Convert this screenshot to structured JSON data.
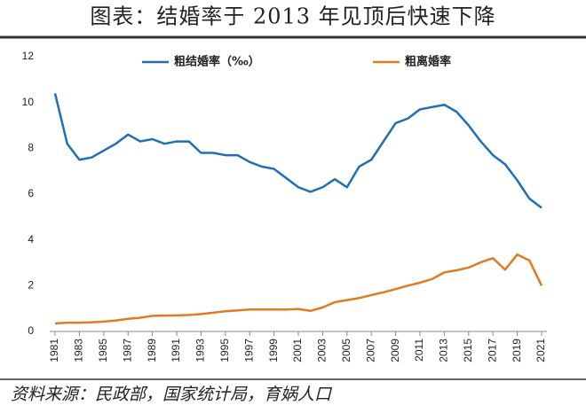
{
  "chart_data": {
    "type": "line",
    "title": "图表：结婚率于 2013 年见顶后快速下降",
    "source": "资料来源：民政部，国家统计局，育娲人口",
    "x": [
      1981,
      1982,
      1983,
      1984,
      1985,
      1986,
      1987,
      1988,
      1989,
      1990,
      1991,
      1992,
      1993,
      1994,
      1995,
      1996,
      1997,
      1998,
      1999,
      2000,
      2001,
      2002,
      2003,
      2004,
      2005,
      2006,
      2007,
      2008,
      2009,
      2010,
      2011,
      2012,
      2013,
      2014,
      2015,
      2016,
      2017,
      2018,
      2019,
      2020,
      2021
    ],
    "series": [
      {
        "name": "粗结婚率（‰）",
        "color": "#1f6fb8",
        "values": [
          10.4,
          8.2,
          7.5,
          7.6,
          7.9,
          8.2,
          8.6,
          8.3,
          8.4,
          8.2,
          8.3,
          8.3,
          7.8,
          7.8,
          7.7,
          7.7,
          7.4,
          7.2,
          7.1,
          6.7,
          6.3,
          6.1,
          6.3,
          6.65,
          6.3,
          7.2,
          7.5,
          8.3,
          9.1,
          9.3,
          9.7,
          9.8,
          9.9,
          9.6,
          9.0,
          8.3,
          7.7,
          7.3,
          6.6,
          5.8,
          5.4
        ]
      },
      {
        "name": "粗离婚率",
        "color": "#e07b24",
        "values": [
          0.35,
          0.38,
          0.38,
          0.4,
          0.43,
          0.48,
          0.55,
          0.6,
          0.68,
          0.69,
          0.7,
          0.72,
          0.76,
          0.82,
          0.88,
          0.92,
          0.96,
          0.96,
          0.96,
          0.96,
          0.98,
          0.9,
          1.05,
          1.28,
          1.37,
          1.46,
          1.59,
          1.71,
          1.85,
          2.0,
          2.13,
          2.29,
          2.58,
          2.67,
          2.79,
          3.02,
          3.2,
          2.7,
          3.36,
          3.1,
          2.0
        ]
      }
    ],
    "xlim": [
      1981,
      2021
    ],
    "xticks": [
      1981,
      1983,
      1985,
      1987,
      1989,
      1991,
      1993,
      1995,
      1997,
      1999,
      2001,
      2003,
      2005,
      2007,
      2009,
      2011,
      2013,
      2015,
      2017,
      2019,
      2021
    ],
    "ylim": [
      0,
      12
    ],
    "yticks": [
      0,
      2,
      4,
      6,
      8,
      10,
      12
    ],
    "grid": false
  }
}
